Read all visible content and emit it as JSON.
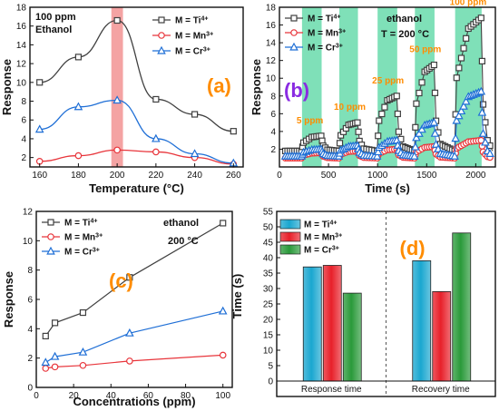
{
  "colors": {
    "ti": "#404040",
    "mn": "#e8353b",
    "cr": "#1f6fd6",
    "cyan_bar": "#1aa7d0",
    "red_bar": "#e8202a",
    "green_bar": "#2a9a3a",
    "highlight_red": "#f4a3a3",
    "highlight_green": "#7fe0b8",
    "tag_orange": "#ff8c00",
    "tag_purple": "#8a2be2",
    "ethanol_blue": "#1c4fd8"
  },
  "chart_data": [
    {
      "type": "line",
      "panel_label": "(a)",
      "annotation": [
        "100 ppm",
        "Ethanol"
      ],
      "xlabel": "Temperature (°C)",
      "ylabel": "Response",
      "xlim": [
        155,
        265
      ],
      "ylim": [
        1,
        18
      ],
      "xticks": [
        160,
        180,
        200,
        220,
        240,
        260
      ],
      "yticks": [
        2,
        4,
        6,
        8,
        10,
        12,
        14,
        16,
        18
      ],
      "x": [
        160,
        180,
        200,
        220,
        240,
        260
      ],
      "highlight_x": [
        197,
        203
      ],
      "series": [
        {
          "name": "M = Ti",
          "sup": "4+",
          "marker": "square",
          "values": [
            10.0,
            12.7,
            16.6,
            8.2,
            6.6,
            4.8
          ]
        },
        {
          "name": "M = Mn",
          "sup": "3+",
          "marker": "circle",
          "values": [
            1.6,
            2.2,
            2.8,
            2.6,
            2.0,
            1.3
          ]
        },
        {
          "name": "M = Cr",
          "sup": "3+",
          "marker": "triangle",
          "values": [
            5.0,
            7.4,
            8.1,
            4.0,
            2.4,
            1.4
          ]
        }
      ]
    },
    {
      "type": "line",
      "panel_label": "(b)",
      "annotation_gas": "ethanol",
      "annotation_temp": "T = 200 °C",
      "xlabel": "Time (s)",
      "ylabel": "Response",
      "xlim": [
        0,
        2200
      ],
      "ylim": [
        0,
        18
      ],
      "xticks": [
        0,
        500,
        1000,
        1500,
        2000
      ],
      "yticks": [
        2,
        4,
        6,
        8,
        10,
        12,
        14,
        16,
        18
      ],
      "pulses": [
        {
          "label": "5 ppm",
          "start": 230,
          "end": 430,
          "ti": 3.5,
          "mn": 1.6,
          "cr": 2.0
        },
        {
          "label": "10 ppm",
          "start": 610,
          "end": 800,
          "ti": 5.0,
          "mn": 1.8,
          "cr": 2.4
        },
        {
          "label": "25 ppm",
          "start": 1000,
          "end": 1200,
          "ti": 8.0,
          "mn": 2.0,
          "cr": 3.0
        },
        {
          "label": "50 ppm",
          "start": 1380,
          "end": 1580,
          "ti": 11.5,
          "mn": 2.3,
          "cr": 5.0
        },
        {
          "label": "100 ppm",
          "start": 1790,
          "end": 2060,
          "ti": 16.8,
          "mn": 3.0,
          "cr": 8.5
        }
      ],
      "baseline": {
        "ti": 1.8,
        "mn": 1.0,
        "cr": 1.2
      },
      "series": [
        {
          "name": "M = Ti",
          "sup": "4+",
          "marker": "square"
        },
        {
          "name": "M = Mn",
          "sup": "3+",
          "marker": "circle"
        },
        {
          "name": "M = Cr",
          "sup": "3+",
          "marker": "triangle"
        }
      ]
    },
    {
      "type": "line",
      "panel_label": "(c)",
      "annotation_gas": "ethanol",
      "annotation_temp": "200 °C",
      "xlabel": "Concentrations (ppm)",
      "ylabel": "Response",
      "xlim": [
        0,
        105
      ],
      "ylim": [
        0,
        12
      ],
      "xticks": [
        0,
        20,
        40,
        60,
        80,
        100
      ],
      "yticks": [
        0,
        2,
        4,
        6,
        8,
        10,
        12
      ],
      "x": [
        5,
        10,
        25,
        50,
        100
      ],
      "series": [
        {
          "name": "M = Ti",
          "sup": "4+",
          "marker": "square",
          "values": [
            3.5,
            4.4,
            5.1,
            7.5,
            11.2
          ]
        },
        {
          "name": "M = Mn",
          "sup": "3+",
          "marker": "circle",
          "values": [
            1.3,
            1.4,
            1.5,
            1.8,
            2.2
          ]
        },
        {
          "name": "M = Cr",
          "sup": "3+",
          "marker": "triangle",
          "values": [
            1.7,
            2.1,
            2.4,
            3.7,
            5.2
          ]
        }
      ]
    },
    {
      "type": "bar",
      "panel_label": "(d)",
      "ylabel": "Time (s)",
      "ylim": [
        0,
        55
      ],
      "yticks": [
        0,
        5,
        10,
        15,
        20,
        25,
        30,
        35,
        40,
        45,
        50,
        55
      ],
      "categories": [
        "Response time",
        "Recovery time"
      ],
      "series": [
        {
          "name": "M = Ti",
          "sup": "4+",
          "values": [
            37,
            39
          ]
        },
        {
          "name": "M = Mn",
          "sup": "3+",
          "values": [
            37.5,
            29
          ]
        },
        {
          "name": "M = Cr",
          "sup": "3+",
          "values": [
            28.5,
            48
          ]
        }
      ]
    }
  ]
}
